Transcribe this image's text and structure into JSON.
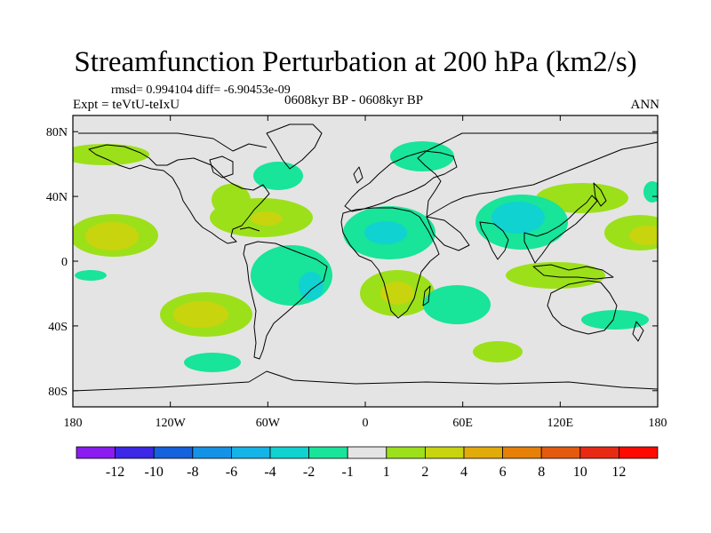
{
  "title": "Streamfunction Perturbation at 200 hPa (km2/s)",
  "stats": "rmsd= 0.994104 diff= -6.90453e-09",
  "experiment": "Expt = teVtU-teIxU",
  "period": "0608kyr BP - 0608kyr BP",
  "season": "ANN",
  "map": {
    "projection": "cylindrical equidistant",
    "lon_range": [
      -180,
      180
    ],
    "lat_range": [
      -90,
      90
    ],
    "lon_ticks": [
      "180",
      "120W",
      "60W",
      "0",
      "60E",
      "120E",
      "180"
    ],
    "lat_ticks": [
      "80N",
      "40N",
      "0",
      "40S",
      "80S"
    ]
  },
  "colorbar": {
    "labels": [
      "-12",
      "-10",
      "-8",
      "-6",
      "-4",
      "-2",
      "-1",
      "1",
      "2",
      "4",
      "6",
      "8",
      "10",
      "12"
    ],
    "colors": [
      "#8a1cf0",
      "#3c28e6",
      "#1462dc",
      "#1492e6",
      "#14b4e6",
      "#10d2d0",
      "#18e49a",
      "#e4e4e4",
      "#9ce01a",
      "#c8d40e",
      "#e2aa0a",
      "#e68008",
      "#e45a0e",
      "#e82a14",
      "#ff0a00"
    ]
  }
}
